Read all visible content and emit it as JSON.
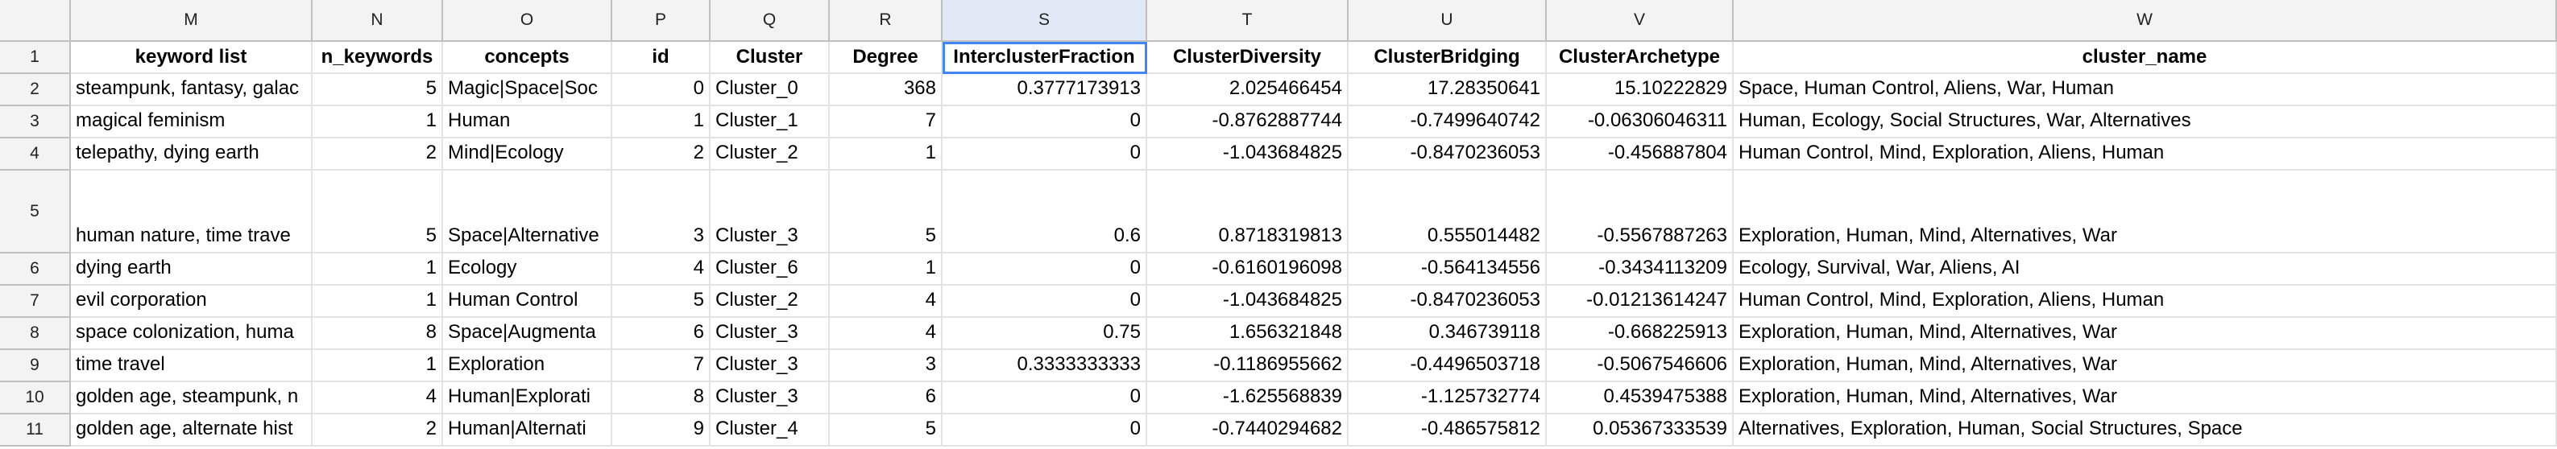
{
  "columns": [
    "M",
    "N",
    "O",
    "P",
    "Q",
    "R",
    "S",
    "T",
    "U",
    "V",
    "W"
  ],
  "header_row": {
    "row_num": "1",
    "cells": [
      "keyword list",
      "n_keywords",
      "concepts",
      "id",
      "Cluster",
      "Degree",
      "InterclusterFraction",
      "ClusterDiversity",
      "ClusterBridging",
      "ClusterArchetype",
      "cluster_name"
    ]
  },
  "rows": [
    {
      "row_num": "2",
      "cells": [
        "steampunk, fantasy, galac",
        "5",
        "Magic|Space|Soc",
        "0",
        "Cluster_0",
        "368",
        "0.3777173913",
        "2.025466454",
        "17.28350641",
        "15.10222829",
        "Space, Human Control, Aliens, War, Human"
      ]
    },
    {
      "row_num": "3",
      "cells": [
        "magical feminism",
        "1",
        "Human",
        "1",
        "Cluster_1",
        "7",
        "0",
        "-0.8762887744",
        "-0.7499640742",
        "-0.06306046311",
        "Human, Ecology, Social Structures, War, Alternatives"
      ]
    },
    {
      "row_num": "4",
      "cells": [
        "telepathy, dying earth",
        "2",
        "Mind|Ecology",
        "2",
        "Cluster_2",
        "1",
        "0",
        "-1.043684825",
        "-0.8470236053",
        "-0.456887804",
        "Human Control, Mind, Exploration, Aliens, Human"
      ]
    },
    {
      "row_num": "5",
      "cells": [
        "human nature, time trave",
        "5",
        "Space|Alternative",
        "3",
        "Cluster_3",
        "5",
        "0.6",
        "0.8718319813",
        "0.555014482",
        "-0.5567887263",
        "Exploration, Human, Mind, Alternatives, War"
      ]
    },
    {
      "row_num": "6",
      "cells": [
        "dying earth",
        "1",
        "Ecology",
        "4",
        "Cluster_6",
        "1",
        "0",
        "-0.6160196098",
        "-0.564134556",
        "-0.3434113209",
        "Ecology, Survival, War, Aliens, AI"
      ]
    },
    {
      "row_num": "7",
      "cells": [
        "evil corporation",
        "1",
        "Human Control",
        "5",
        "Cluster_2",
        "4",
        "0",
        "-1.043684825",
        "-0.8470236053",
        "-0.01213614247",
        "Human Control, Mind, Exploration, Aliens, Human"
      ]
    },
    {
      "row_num": "8",
      "cells": [
        "space colonization, huma",
        "8",
        "Space|Augmenta",
        "6",
        "Cluster_3",
        "4",
        "0.75",
        "1.656321848",
        "0.346739118",
        "-0.668225913",
        "Exploration, Human, Mind, Alternatives, War"
      ]
    },
    {
      "row_num": "9",
      "cells": [
        "time travel",
        "1",
        "Exploration",
        "7",
        "Cluster_3",
        "3",
        "0.3333333333",
        "-0.1186955662",
        "-0.4496503718",
        "-0.5067546606",
        "Exploration, Human, Mind, Alternatives, War"
      ]
    },
    {
      "row_num": "10",
      "cells": [
        "golden age, steampunk, n",
        "4",
        "Human|Explorati",
        "8",
        "Cluster_3",
        "6",
        "0",
        "-1.625568839",
        "-1.125732774",
        "0.4539475388",
        "Exploration, Human, Mind, Alternatives, War"
      ]
    },
    {
      "row_num": "11",
      "cells": [
        "golden age, alternate hist",
        "2",
        "Human|Alternati",
        "9",
        "Cluster_4",
        "5",
        "0",
        "-0.7440294682",
        "-0.486575812",
        "0.05367333539",
        "Alternatives, Exploration, Human, Social Structures, Space"
      ]
    }
  ]
}
